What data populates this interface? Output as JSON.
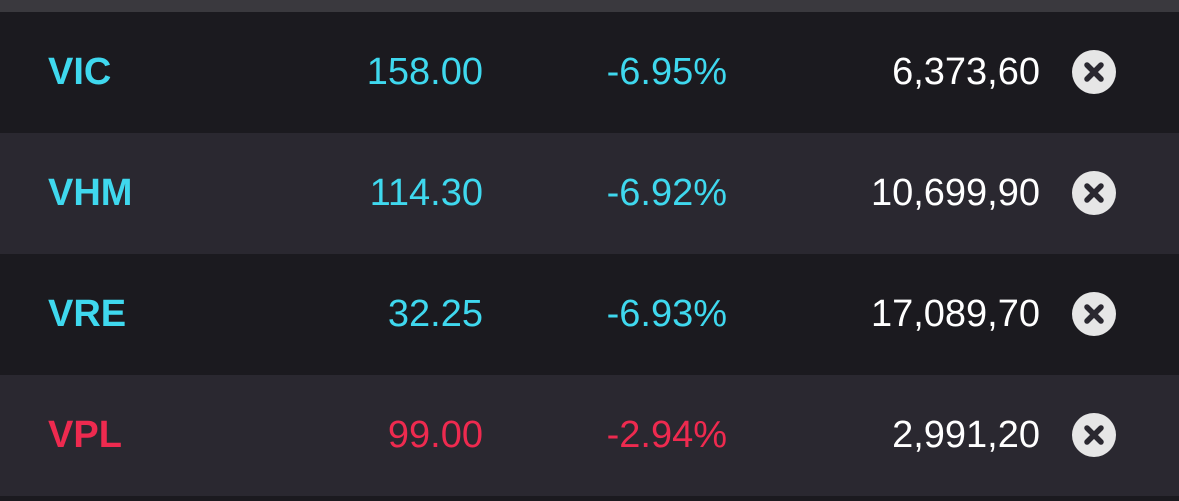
{
  "colors": {
    "up_cyan": "#3fd8ee",
    "down_red": "#ee2a4f",
    "volume": "#ffffff",
    "row_dark": "#1b1a1f",
    "row_light": "#2a2830"
  },
  "rows": [
    {
      "ticker": "VIC",
      "price": "158.00",
      "change": "-6.95%",
      "volume": "6,373,60",
      "color": "#3fd8ee",
      "remove_icon": "close-circle-icon"
    },
    {
      "ticker": "VHM",
      "price": "114.30",
      "change": "-6.92%",
      "volume": "10,699,90",
      "color": "#3fd8ee",
      "remove_icon": "close-circle-icon"
    },
    {
      "ticker": "VRE",
      "price": "32.25",
      "change": "-6.93%",
      "volume": "17,089,70",
      "color": "#3fd8ee",
      "remove_icon": "close-circle-icon"
    },
    {
      "ticker": "VPL",
      "price": "99.00",
      "change": "-2.94%",
      "volume": "2,991,20",
      "color": "#ee2a4f",
      "remove_icon": "close-circle-icon"
    }
  ]
}
